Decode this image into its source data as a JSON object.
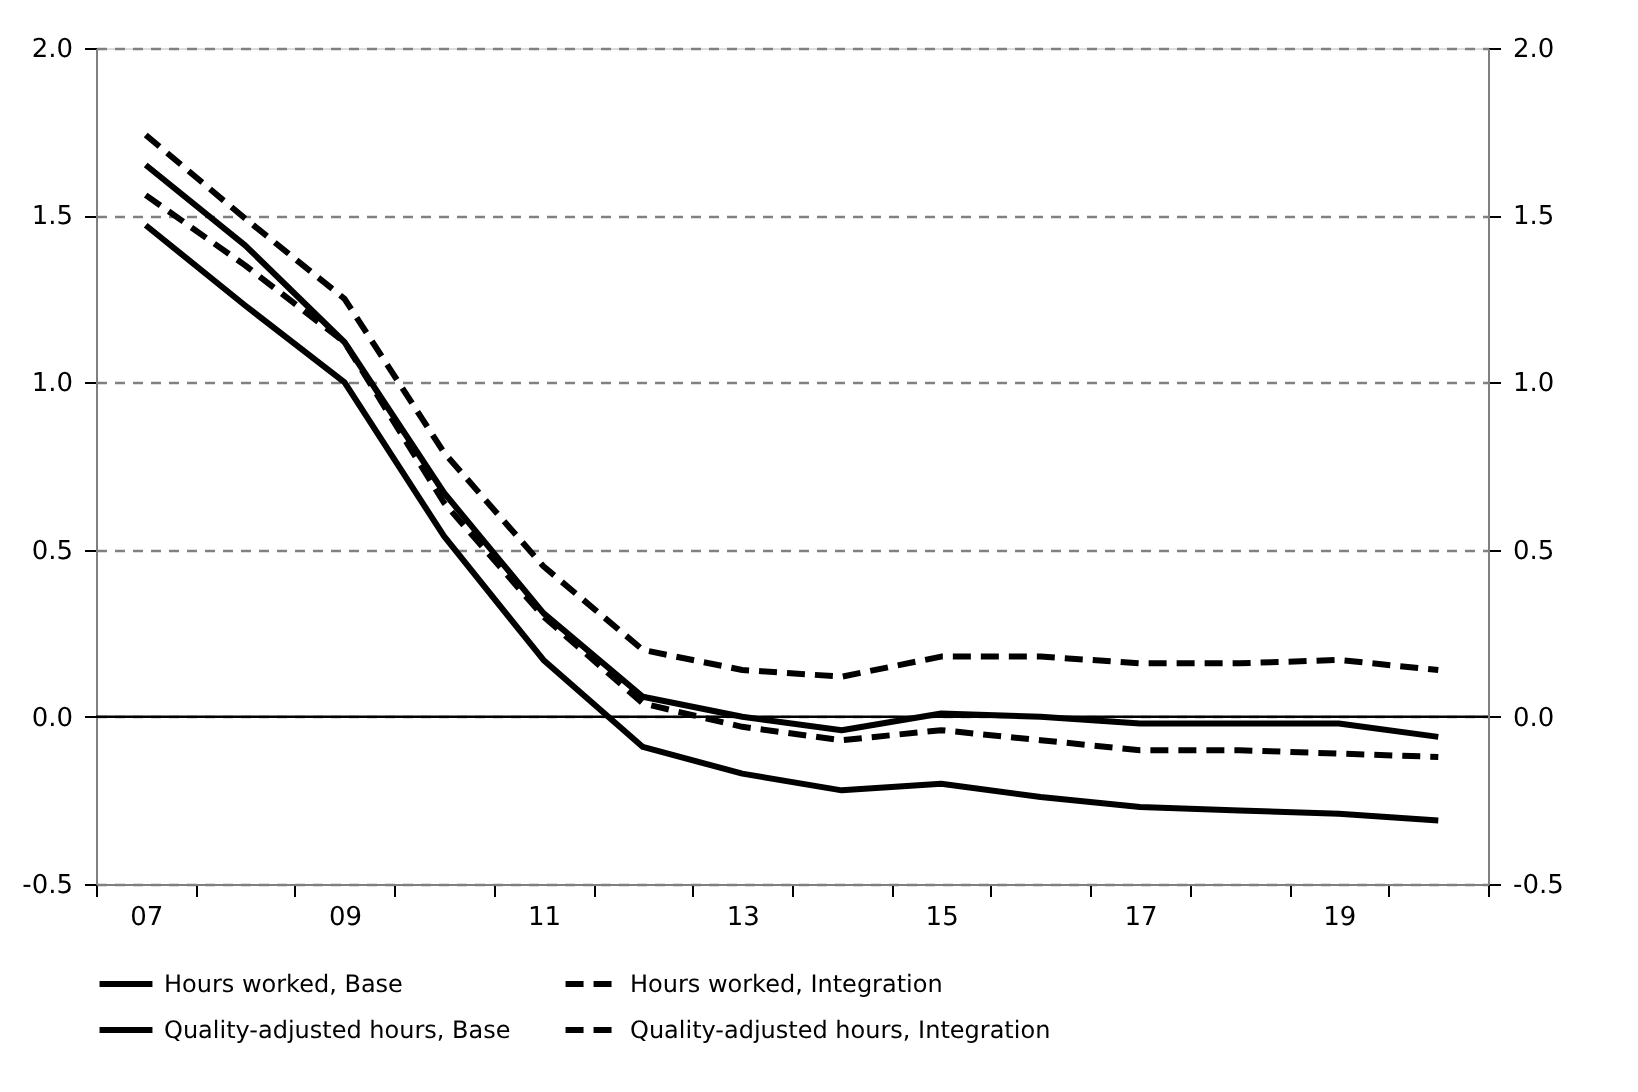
{
  "chart_data": {
    "type": "line",
    "x": [
      7,
      8,
      9,
      10,
      11,
      12,
      13,
      14,
      15,
      16,
      17,
      18,
      19,
      20
    ],
    "series": [
      {
        "name": "Hours worked, Base",
        "color": "#000000",
        "line_style": "solid",
        "values": [
          1.47,
          1.23,
          1.0,
          0.54,
          0.17,
          -0.09,
          -0.17,
          -0.22,
          -0.2,
          -0.24,
          -0.27,
          -0.28,
          -0.29,
          -0.31
        ]
      },
      {
        "name": "Hours worked, Integration",
        "color": "#000000",
        "line_style": "dashed",
        "values": [
          1.56,
          1.35,
          1.12,
          0.64,
          0.3,
          0.04,
          -0.03,
          -0.07,
          -0.04,
          -0.07,
          -0.1,
          -0.1,
          -0.11,
          -0.12
        ]
      },
      {
        "name": "Quality-adjusted hours, Base",
        "color": "#000000",
        "line_style": "solid",
        "values": [
          1.65,
          1.41,
          1.12,
          0.67,
          0.31,
          0.06,
          0.0,
          -0.04,
          0.01,
          0.0,
          -0.02,
          -0.02,
          -0.02,
          -0.06
        ]
      },
      {
        "name": "Quality-adjusted hours, Integration",
        "color": "#000000",
        "line_style": "dashed",
        "values": [
          1.74,
          1.49,
          1.25,
          0.79,
          0.45,
          0.2,
          0.14,
          0.12,
          0.18,
          0.18,
          0.16,
          0.16,
          0.17,
          0.14
        ]
      }
    ],
    "xlim": [
      6.5,
      20.5
    ],
    "xticks": [
      {
        "value": 6.5,
        "label": null
      },
      {
        "value": 7,
        "label": "07"
      },
      {
        "value": 7.5,
        "label": null
      },
      {
        "value": 8.5,
        "label": null
      },
      {
        "value": 9,
        "label": "09"
      },
      {
        "value": 9.5,
        "label": null
      },
      {
        "value": 10.5,
        "label": null
      },
      {
        "value": 11,
        "label": "11"
      },
      {
        "value": 11.5,
        "label": null
      },
      {
        "value": 12.5,
        "label": null
      },
      {
        "value": 13,
        "label": "13"
      },
      {
        "value": 13.5,
        "label": null
      },
      {
        "value": 14.5,
        "label": null
      },
      {
        "value": 15,
        "label": "15"
      },
      {
        "value": 15.5,
        "label": null
      },
      {
        "value": 16.5,
        "label": null
      },
      {
        "value": 17,
        "label": "17"
      },
      {
        "value": 17.5,
        "label": null
      },
      {
        "value": 18.5,
        "label": null
      },
      {
        "value": 19,
        "label": "19"
      },
      {
        "value": 19.5,
        "label": null
      },
      {
        "value": 20.5,
        "label": null
      }
    ],
    "ylim": [
      -0.5,
      2.0
    ],
    "yticks": [
      {
        "value": -0.5,
        "label": "-0.5"
      },
      {
        "value": 0,
        "label": "0.0"
      },
      {
        "value": 0.5,
        "label": "0.5"
      },
      {
        "value": 1.0,
        "label": "1.0"
      },
      {
        "value": 1.5,
        "label": "1.5"
      },
      {
        "value": 2.0,
        "label": "2.0"
      }
    ],
    "y2lim": [
      -0.5,
      2.0
    ],
    "y2ticks": [
      {
        "value": -0.5,
        "label": "-0.5"
      },
      {
        "value": 0,
        "label": "0.0"
      },
      {
        "value": 0.5,
        "label": "0.5"
      },
      {
        "value": 1.0,
        "label": "1.0"
      },
      {
        "value": 1.5,
        "label": "1.5"
      },
      {
        "value": 2.0,
        "label": "2.0"
      }
    ],
    "ref_lines": [
      {
        "axis": "y",
        "value": 0,
        "color": "#000000",
        "line_style": "solid"
      }
    ],
    "grid": "y",
    "legend": "bottom",
    "marker": "none"
  }
}
